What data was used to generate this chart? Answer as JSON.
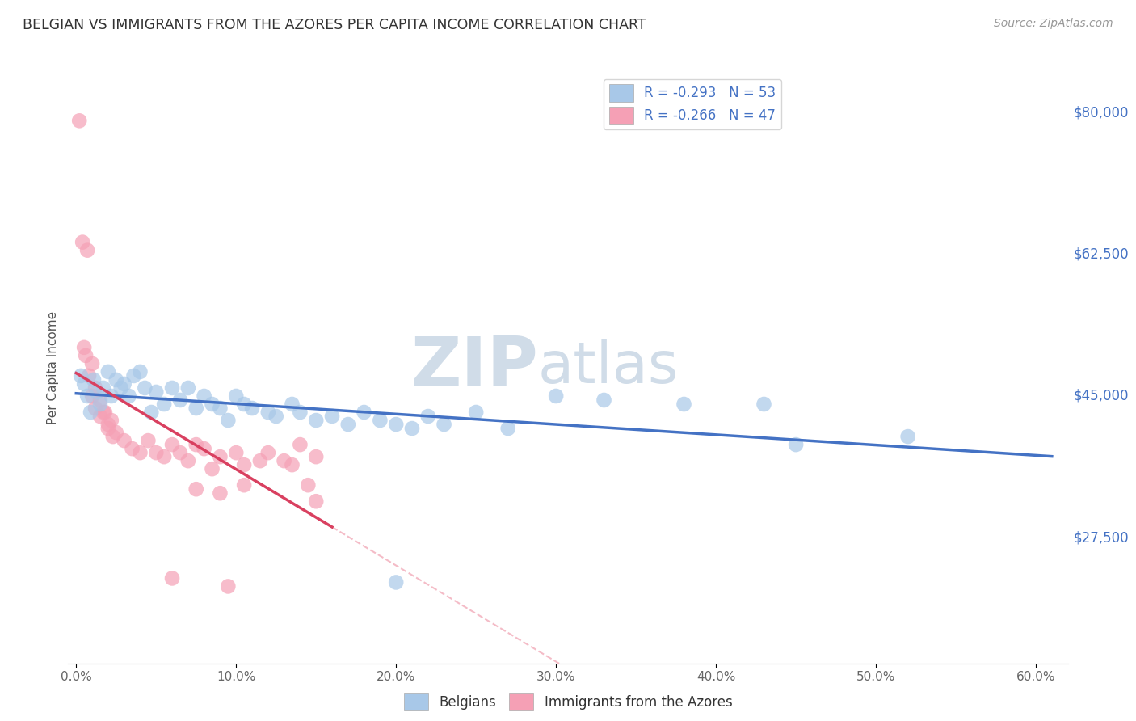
{
  "title": "BELGIAN VS IMMIGRANTS FROM THE AZORES PER CAPITA INCOME CORRELATION CHART",
  "source": "Source: ZipAtlas.com",
  "ylabel": "Per Capita Income",
  "ytick_labels": [
    "$27,500",
    "$45,000",
    "$62,500",
    "$80,000"
  ],
  "ytick_vals": [
    27500,
    45000,
    62500,
    80000
  ],
  "xlim": [
    -0.5,
    62
  ],
  "ylim": [
    12000,
    85000
  ],
  "legend_entries": [
    {
      "label": "R = -0.293   N = 53",
      "color": "#a8c4e0"
    },
    {
      "label": "R = -0.266   N = 47",
      "color": "#f5a0b0"
    }
  ],
  "belgian_color": "#a8c8e8",
  "azores_color": "#f5a0b5",
  "belgian_line_color": "#4472c4",
  "azores_line_color": "#d94060",
  "azores_line_dash_color": "#f0a0b0",
  "watermark_zip_color": "#d0dce8",
  "watermark_atlas_color": "#d0dce8",
  "title_color": "#333333",
  "right_tick_color": "#4472c4",
  "grid_color": "#cccccc",
  "background_color": "#ffffff",
  "belgian_scatter": [
    [
      0.3,
      47500
    ],
    [
      0.5,
      46500
    ],
    [
      0.7,
      45000
    ],
    [
      0.9,
      43000
    ],
    [
      1.1,
      47000
    ],
    [
      1.3,
      45500
    ],
    [
      1.5,
      44000
    ],
    [
      1.7,
      46000
    ],
    [
      2.0,
      48000
    ],
    [
      2.2,
      45000
    ],
    [
      2.5,
      47000
    ],
    [
      2.8,
      46000
    ],
    [
      3.0,
      46500
    ],
    [
      3.3,
      45000
    ],
    [
      3.6,
      47500
    ],
    [
      4.0,
      48000
    ],
    [
      4.3,
      46000
    ],
    [
      4.7,
      43000
    ],
    [
      5.0,
      45500
    ],
    [
      5.5,
      44000
    ],
    [
      6.0,
      46000
    ],
    [
      6.5,
      44500
    ],
    [
      7.0,
      46000
    ],
    [
      7.5,
      43500
    ],
    [
      8.0,
      45000
    ],
    [
      8.5,
      44000
    ],
    [
      9.0,
      43500
    ],
    [
      9.5,
      42000
    ],
    [
      10.0,
      45000
    ],
    [
      10.5,
      44000
    ],
    [
      11.0,
      43500
    ],
    [
      12.0,
      43000
    ],
    [
      12.5,
      42500
    ],
    [
      13.5,
      44000
    ],
    [
      14.0,
      43000
    ],
    [
      15.0,
      42000
    ],
    [
      16.0,
      42500
    ],
    [
      17.0,
      41500
    ],
    [
      18.0,
      43000
    ],
    [
      19.0,
      42000
    ],
    [
      20.0,
      41500
    ],
    [
      21.0,
      41000
    ],
    [
      22.0,
      42500
    ],
    [
      23.0,
      41500
    ],
    [
      25.0,
      43000
    ],
    [
      27.0,
      41000
    ],
    [
      30.0,
      45000
    ],
    [
      33.0,
      44500
    ],
    [
      38.0,
      44000
    ],
    [
      43.0,
      44000
    ],
    [
      45.0,
      39000
    ],
    [
      52.0,
      40000
    ],
    [
      20.0,
      22000
    ]
  ],
  "azores_scatter": [
    [
      0.2,
      79000
    ],
    [
      0.4,
      64000
    ],
    [
      0.7,
      63000
    ],
    [
      0.5,
      51000
    ],
    [
      0.6,
      50000
    ],
    [
      1.0,
      49000
    ],
    [
      0.8,
      47500
    ],
    [
      1.2,
      46000
    ],
    [
      1.0,
      45000
    ],
    [
      1.5,
      44500
    ],
    [
      1.2,
      43500
    ],
    [
      1.8,
      43000
    ],
    [
      1.5,
      42500
    ],
    [
      2.0,
      41500
    ],
    [
      1.7,
      43000
    ],
    [
      2.2,
      42000
    ],
    [
      2.0,
      41000
    ],
    [
      2.5,
      40500
    ],
    [
      2.3,
      40000
    ],
    [
      3.0,
      39500
    ],
    [
      3.5,
      38500
    ],
    [
      4.0,
      38000
    ],
    [
      4.5,
      39500
    ],
    [
      5.0,
      38000
    ],
    [
      5.5,
      37500
    ],
    [
      6.0,
      39000
    ],
    [
      6.5,
      38000
    ],
    [
      7.0,
      37000
    ],
    [
      7.5,
      39000
    ],
    [
      8.0,
      38500
    ],
    [
      9.0,
      37500
    ],
    [
      10.0,
      38000
    ],
    [
      10.5,
      36500
    ],
    [
      11.5,
      37000
    ],
    [
      12.0,
      38000
    ],
    [
      13.0,
      37000
    ],
    [
      13.5,
      36500
    ],
    [
      14.0,
      39000
    ],
    [
      8.5,
      36000
    ],
    [
      15.0,
      37500
    ],
    [
      9.0,
      33000
    ],
    [
      10.5,
      34000
    ],
    [
      7.5,
      33500
    ],
    [
      14.5,
      34000
    ],
    [
      6.0,
      22500
    ],
    [
      9.5,
      21500
    ],
    [
      15.0,
      32000
    ]
  ],
  "azores_line_xlim": [
    0,
    60
  ],
  "azores_solid_xlim": [
    0,
    16
  ],
  "marker_size": 180
}
